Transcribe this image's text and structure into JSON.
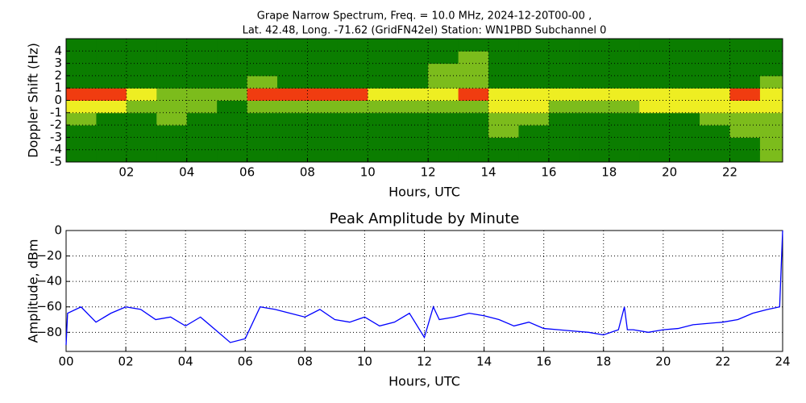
{
  "chart_data": [
    {
      "type": "heatmap",
      "title": [
        "Grape Narrow Spectrum, Freq. = 10.0 MHz, 2024-12-20T00-00 ,",
        "Lat.  42.48, Long. -71.62 (GridFN42el) Station: WN1PBD Subchannel 0"
      ],
      "xlabel": "Hours, UTC",
      "ylabel": "Doppler Shift (Hz)",
      "xlim": [
        0,
        23.75
      ],
      "ylim": [
        -5,
        5
      ],
      "xticks": [
        {
          "value": 2,
          "label": "02"
        },
        {
          "value": 4,
          "label": "04"
        },
        {
          "value": 6,
          "label": "06"
        },
        {
          "value": 8,
          "label": "08"
        },
        {
          "value": 10,
          "label": "10"
        },
        {
          "value": 12,
          "label": "12"
        },
        {
          "value": 14,
          "label": "14"
        },
        {
          "value": 16,
          "label": "16"
        },
        {
          "value": 18,
          "label": "18"
        },
        {
          "value": 20,
          "label": "20"
        },
        {
          "value": 22,
          "label": "22"
        }
      ],
      "yticks": [
        -5,
        -4,
        -3,
        -2,
        -1,
        0,
        1,
        2,
        3,
        4
      ],
      "x_edges": [
        0,
        1,
        2,
        3,
        4,
        5,
        6,
        7,
        8,
        9,
        10,
        11,
        12,
        13,
        14,
        15,
        16,
        17,
        18,
        19,
        20,
        21,
        22,
        23,
        23.75
      ],
      "y_edges": [
        -5,
        -4,
        -3,
        -2,
        -1,
        0,
        1,
        2,
        3,
        4,
        5
      ],
      "colors": [
        "#0b7d00",
        "#7cbc1c",
        "#eeee22",
        "#f03c10"
      ],
      "values": [
        [
          0,
          0,
          0,
          0,
          0,
          0,
          0,
          0,
          0,
          0,
          0,
          0,
          0,
          0,
          0,
          0,
          0,
          0,
          0,
          0,
          0,
          0,
          0,
          1
        ],
        [
          0,
          0,
          0,
          0,
          0,
          0,
          0,
          0,
          0,
          0,
          0,
          0,
          0,
          0,
          0,
          0,
          0,
          0,
          0,
          0,
          0,
          0,
          0,
          1
        ],
        [
          0,
          0,
          0,
          0,
          0,
          0,
          0,
          0,
          0,
          0,
          0,
          0,
          0,
          0,
          1,
          0,
          0,
          0,
          0,
          0,
          0,
          0,
          1,
          1
        ],
        [
          1,
          0,
          0,
          1,
          0,
          0,
          0,
          0,
          0,
          0,
          0,
          0,
          0,
          0,
          1,
          1,
          0,
          0,
          0,
          0,
          0,
          1,
          1,
          1
        ],
        [
          2,
          2,
          1,
          1,
          1,
          0,
          1,
          1,
          1,
          1,
          1,
          1,
          1,
          1,
          2,
          2,
          1,
          1,
          1,
          2,
          2,
          2,
          2,
          2
        ],
        [
          3,
          3,
          2,
          1,
          1,
          1,
          3,
          3,
          3,
          3,
          2,
          2,
          2,
          3,
          2,
          2,
          2,
          2,
          2,
          2,
          2,
          2,
          3,
          2
        ],
        [
          0,
          0,
          0,
          0,
          0,
          0,
          1,
          0,
          0,
          0,
          0,
          0,
          1,
          1,
          0,
          0,
          0,
          0,
          0,
          0,
          0,
          0,
          0,
          1
        ],
        [
          0,
          0,
          0,
          0,
          0,
          0,
          0,
          0,
          0,
          0,
          0,
          0,
          1,
          1,
          0,
          0,
          0,
          0,
          0,
          0,
          0,
          0,
          0,
          0
        ],
        [
          0,
          0,
          0,
          0,
          0,
          0,
          0,
          0,
          0,
          0,
          0,
          0,
          0,
          1,
          0,
          0,
          0,
          0,
          0,
          0,
          0,
          0,
          0,
          0
        ],
        [
          0,
          0,
          0,
          0,
          0,
          0,
          0,
          0,
          0,
          0,
          0,
          0,
          0,
          0,
          0,
          0,
          0,
          0,
          0,
          0,
          0,
          0,
          0,
          0
        ]
      ],
      "grid": true
    },
    {
      "type": "line",
      "title": "Peak Amplitude by Minute",
      "xlabel": "Hours, UTC",
      "ylabel": "Amplitude, dBm",
      "xlim": [
        0,
        24
      ],
      "ylim": [
        -95,
        0
      ],
      "xticks": [
        {
          "value": 0,
          "label": "00"
        },
        {
          "value": 2,
          "label": "02"
        },
        {
          "value": 4,
          "label": "04"
        },
        {
          "value": 6,
          "label": "06"
        },
        {
          "value": 8,
          "label": "08"
        },
        {
          "value": 10,
          "label": "10"
        },
        {
          "value": 12,
          "label": "12"
        },
        {
          "value": 14,
          "label": "14"
        },
        {
          "value": 16,
          "label": "16"
        },
        {
          "value": 18,
          "label": "18"
        },
        {
          "value": 20,
          "label": "20"
        },
        {
          "value": 22,
          "label": "22"
        },
        {
          "value": 24,
          "label": "24"
        }
      ],
      "yticks": [
        0,
        {
          "value": -20,
          "label": "−20"
        },
        {
          "value": -40,
          "label": "−40"
        },
        {
          "value": -60,
          "label": "−60"
        },
        {
          "value": -80,
          "label": "−80"
        }
      ],
      "grid": true,
      "series": [
        {
          "color": "#0000ff",
          "x": [
            0,
            0.05,
            0.5,
            1,
            1.5,
            2,
            2.5,
            3,
            3.5,
            4,
            4.5,
            5,
            5.5,
            6,
            6.5,
            7,
            7.5,
            8,
            8.5,
            9,
            9.5,
            10,
            10.5,
            11,
            11.5,
            12,
            12.3,
            12.5,
            13,
            13.5,
            14,
            14.5,
            15,
            15.5,
            16,
            16.5,
            17,
            17.5,
            18,
            18.5,
            18.7,
            18.8,
            19,
            19.5,
            20,
            20.5,
            21,
            21.5,
            22,
            22.5,
            23,
            23.5,
            23.9,
            24
          ],
          "values": [
            -90,
            -65,
            -60,
            -72,
            -65,
            -60,
            -62,
            -70,
            -68,
            -75,
            -68,
            -78,
            -88,
            -85,
            -60,
            -62,
            -65,
            -68,
            -62,
            -70,
            -72,
            -68,
            -75,
            -72,
            -65,
            -84,
            -60,
            -70,
            -68,
            -65,
            -67,
            -70,
            -75,
            -72,
            -77,
            -78,
            -79,
            -80,
            -82,
            -78,
            -60,
            -78,
            -78,
            -80,
            -78,
            -77,
            -74,
            -73,
            -72,
            -70,
            -65,
            -62,
            -60,
            0
          ]
        }
      ]
    }
  ]
}
